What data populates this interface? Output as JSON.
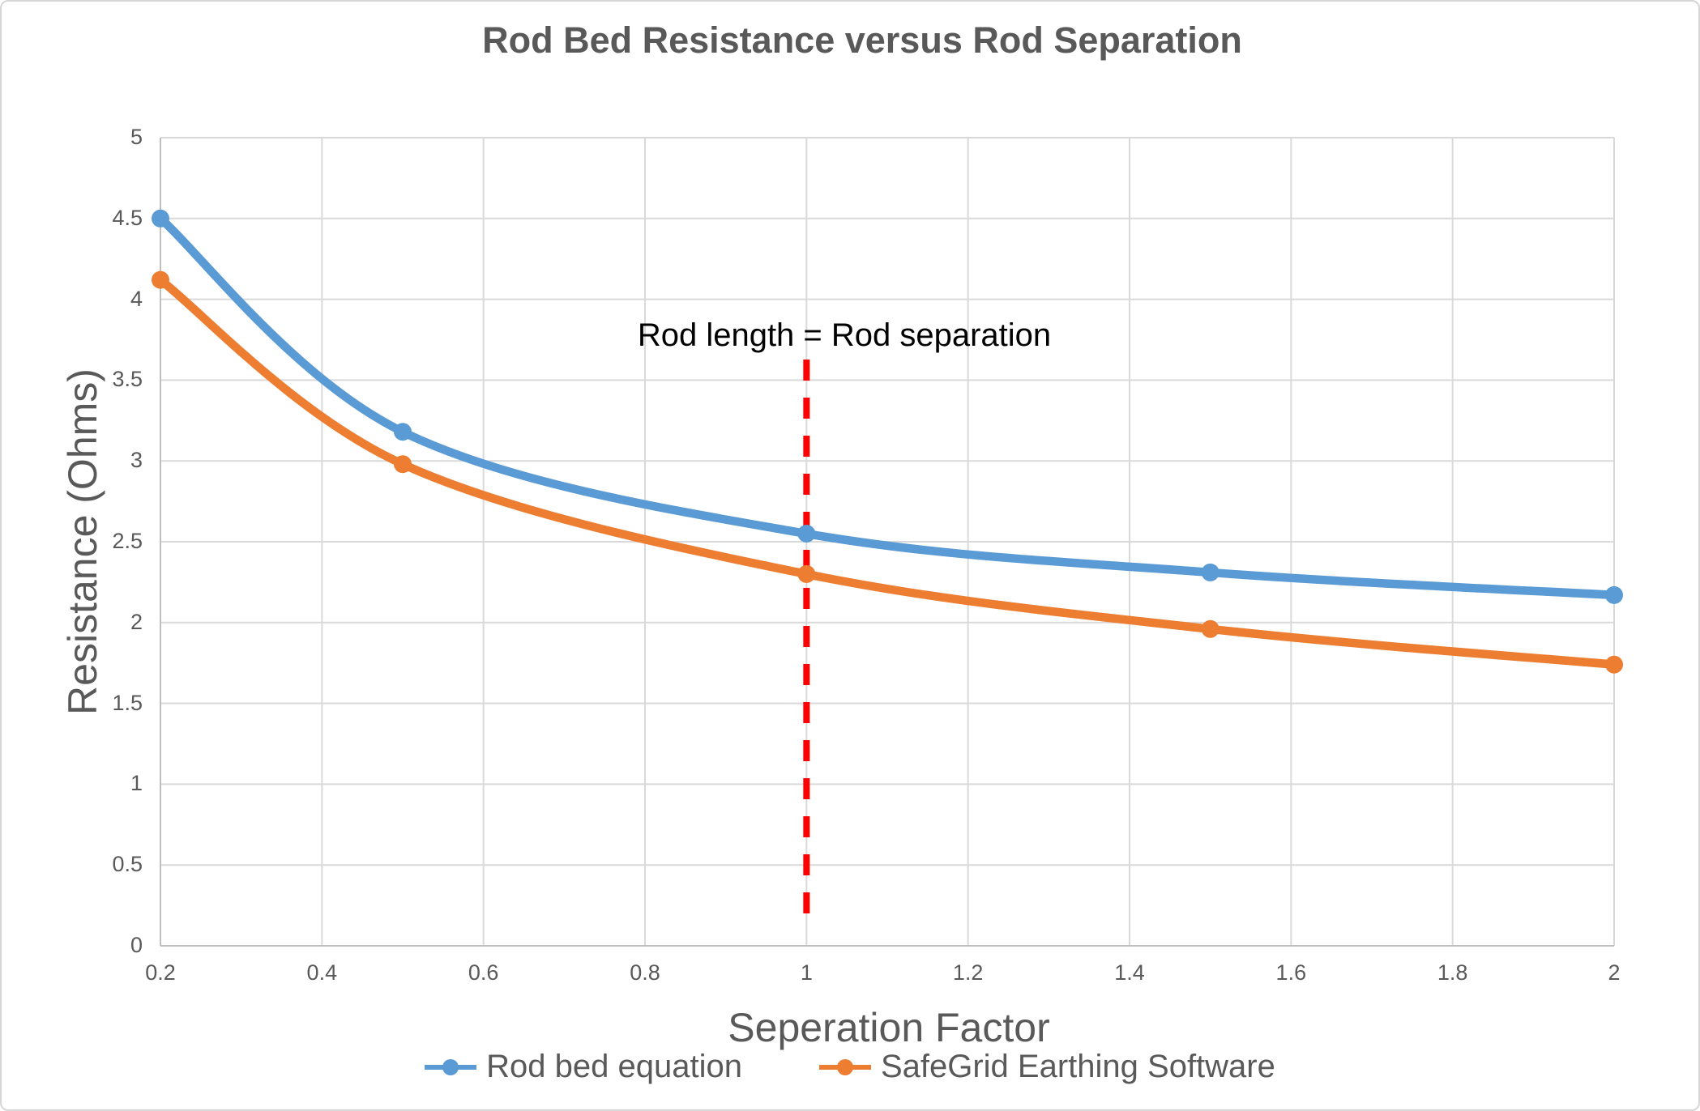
{
  "chart_data": {
    "type": "line",
    "title": "Rod Bed Resistance versus Rod Separation",
    "xlabel": "Seperation Factor",
    "ylabel": "Resistance (Ohms)",
    "x": [
      0.2,
      0.5,
      1,
      1.5,
      2
    ],
    "series": [
      {
        "name": "Rod bed equation",
        "color": "#5B9BD5",
        "values": [
          4.5,
          3.18,
          2.55,
          2.31,
          2.17
        ]
      },
      {
        "name": "SafeGrid Earthing Software",
        "color": "#ED7D31",
        "values": [
          4.12,
          2.98,
          2.3,
          1.96,
          1.74
        ]
      }
    ],
    "xlim": [
      0.2,
      2
    ],
    "ylim": [
      0,
      5
    ],
    "xticks": [
      0.2,
      0.4,
      0.6,
      0.8,
      1,
      1.2,
      1.4,
      1.6,
      1.8,
      2
    ],
    "yticks": [
      0,
      0.5,
      1,
      1.5,
      2,
      2.5,
      3,
      3.5,
      4,
      4.5,
      5
    ],
    "grid": true,
    "legend_position": "bottom",
    "annotation": {
      "text": "Rod length = Rod separation",
      "x": 1,
      "text_color": "#000000",
      "line_color": "#FF0000",
      "line_style": "dashed"
    },
    "colors": {
      "gridline": "#D9D9D9",
      "axis_line": "#BFBFBF",
      "text": "#595959"
    }
  }
}
